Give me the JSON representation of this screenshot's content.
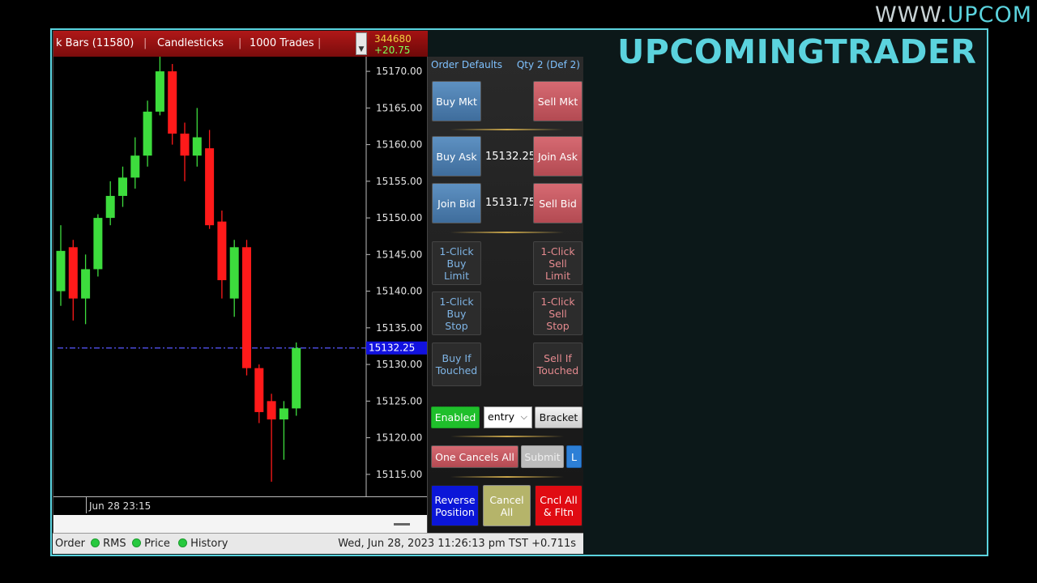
{
  "watermark": {
    "prefix": "WWW.",
    "highlight": "UPCOM"
  },
  "brand": "UPCOMINGTRADER",
  "chart_window": {
    "toolbar": {
      "bars": "k Bars (11580)",
      "style": "Candlesticks",
      "trades": "1000 Trades",
      "separator": "|"
    },
    "quote": {
      "volume": "344680",
      "change": "+20.75"
    },
    "time_label": "Jun 28 23:15"
  },
  "chart_data": {
    "type": "candlestick",
    "y_ticks": [
      "15170.00",
      "15165.00",
      "15160.00",
      "15155.00",
      "15150.00",
      "15145.00",
      "15140.00",
      "15135.00",
      "15130.00",
      "15125.00",
      "15120.00",
      "15115.00"
    ],
    "ylim": [
      15112,
      15172
    ],
    "last_price_label": "15132.25",
    "last_price": 15132.25,
    "colors": {
      "up": "#3ddc3d",
      "down": "#ff1a1a",
      "price_line": "#4a4ad8"
    },
    "candles": [
      {
        "open": 15140,
        "high": 15149,
        "low": 15138,
        "close": 15145.5
      },
      {
        "open": 15146,
        "high": 15147,
        "low": 15136,
        "close": 15139
      },
      {
        "open": 15139,
        "high": 15145,
        "low": 15135.5,
        "close": 15143
      },
      {
        "open": 15143,
        "high": 15150.5,
        "low": 15142,
        "close": 15150
      },
      {
        "open": 15150,
        "high": 15155,
        "low": 15149,
        "close": 15153
      },
      {
        "open": 15153,
        "high": 15157,
        "low": 15151.5,
        "close": 15155.5
      },
      {
        "open": 15155.5,
        "high": 15161,
        "low": 15154,
        "close": 15158.5
      },
      {
        "open": 15158.5,
        "high": 15166,
        "low": 15157,
        "close": 15164.5
      },
      {
        "open": 15164.5,
        "high": 15172,
        "low": 15164,
        "close": 15170
      },
      {
        "open": 15170,
        "high": 15171,
        "low": 15160,
        "close": 15161.5
      },
      {
        "open": 15161.5,
        "high": 15163,
        "low": 15155,
        "close": 15158.5
      },
      {
        "open": 15158.5,
        "high": 15165,
        "low": 15157,
        "close": 15161
      },
      {
        "open": 15159.5,
        "high": 15162,
        "low": 15148.5,
        "close": 15149
      },
      {
        "open": 15149.5,
        "high": 15151,
        "low": 15139,
        "close": 15141.5
      },
      {
        "open": 15139,
        "high": 15147,
        "low": 15136.5,
        "close": 15146
      },
      {
        "open": 15146,
        "high": 15147,
        "low": 15128.5,
        "close": 15129.5
      },
      {
        "open": 15129.5,
        "high": 15130,
        "low": 15122,
        "close": 15123.5
      },
      {
        "open": 15125,
        "high": 15126,
        "low": 15114,
        "close": 15122.5
      },
      {
        "open": 15122.5,
        "high": 15125,
        "low": 15117,
        "close": 15124
      },
      {
        "open": 15124,
        "high": 15133,
        "low": 15123,
        "close": 15132.25
      }
    ]
  },
  "order_panel": {
    "header": {
      "defaults": "Order Defaults",
      "qty": "Qty 2 (Def 2)"
    },
    "buy_mkt": "Buy Mkt",
    "sell_mkt": "Sell Mkt",
    "buy_ask": "Buy Ask",
    "ask_price": "15132.25",
    "join_ask": "Join Ask",
    "join_bid": "Join Bid",
    "bid_price": "15131.75",
    "sell_bid": "Sell Bid",
    "oneclick_buy_limit": [
      "1-Click",
      "Buy",
      "Limit"
    ],
    "oneclick_sell_limit": [
      "1-Click",
      "Sell",
      "Limit"
    ],
    "oneclick_buy_stop": [
      "1-Click",
      "Buy",
      "Stop"
    ],
    "oneclick_sell_stop": [
      "1-Click",
      "Sell",
      "Stop"
    ],
    "buy_if_touched": [
      "Buy If",
      "Touched"
    ],
    "sell_if_touched": [
      "Sell If",
      "Touched"
    ],
    "enabled": "Enabled",
    "entry_select": "entry",
    "bracket": "Bracket",
    "one_cancels_all": "One Cancels All",
    "submit": "Submit",
    "l_button": "L",
    "reverse_position": [
      "Reverse",
      "Position"
    ],
    "cancel_all": [
      "Cancel",
      "All"
    ],
    "cncl_all_fltn": [
      "Cncl All",
      "& Fltn"
    ]
  },
  "statusbar": {
    "order": "Order",
    "rms": "RMS",
    "price": "Price",
    "history": "History",
    "datetime": "Wed, Jun 28, 2023 11:26:13 pm TST +0.711s"
  }
}
